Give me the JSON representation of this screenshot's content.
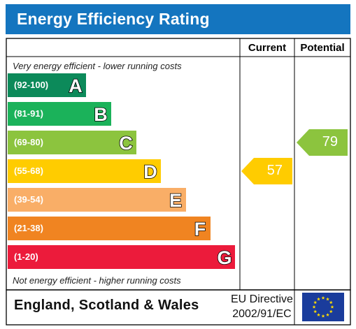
{
  "header": {
    "title": "Energy Efficiency Rating"
  },
  "columns": {
    "current": "Current",
    "potential": "Potential"
  },
  "notes": {
    "top": "Very energy efficient - lower running costs",
    "bottom": "Not energy efficient - higher running costs"
  },
  "footer": {
    "country": "England, Scotland & Wales",
    "directive_line1": "EU Directive",
    "directive_line2": "2002/91/EC"
  },
  "colors": {
    "header": "#1475bf",
    "A": "#0c8a5a",
    "B": "#1bb25a",
    "C": "#8cc43e",
    "D": "#ffcc00",
    "E": "#f9ae67",
    "F": "#f08421",
    "G": "#ec1b3b",
    "current_arrow": "#ffcc00",
    "potential_arrow": "#8cc43e"
  },
  "chart_data": {
    "type": "table",
    "bands": [
      {
        "letter": "A",
        "range": "(92-100)"
      },
      {
        "letter": "B",
        "range": "(81-91)"
      },
      {
        "letter": "C",
        "range": "(69-80)"
      },
      {
        "letter": "D",
        "range": "(55-68)"
      },
      {
        "letter": "E",
        "range": "(39-54)"
      },
      {
        "letter": "F",
        "range": "(21-38)"
      },
      {
        "letter": "G",
        "range": "(1-20)"
      }
    ],
    "current": {
      "value": 57,
      "band": "D",
      "label": "57"
    },
    "potential": {
      "value": 79,
      "band": "C",
      "label": "79"
    }
  }
}
